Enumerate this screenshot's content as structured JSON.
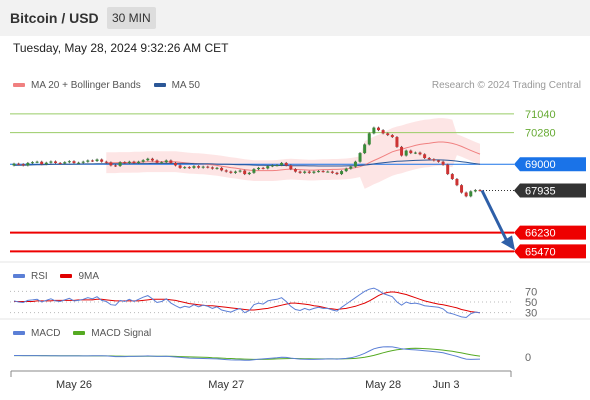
{
  "header": {
    "title": "Bitcoin / USD",
    "interval": "30 MIN",
    "timestamp": "Tuesday, May 28, 2024 9:32:26 AM CET",
    "source": "Research © 2024 Trading Central"
  },
  "colors": {
    "ma20": "#f08080",
    "ma50": "#2b5797",
    "bollinger_fill": "#fde0e0",
    "resistance": "#99cc66",
    "support": "#ee0000",
    "pivot": "#1a73e8",
    "current": "#333333",
    "rsi": "#5b7fd6",
    "rsi_ma": "#e00000",
    "macd": "#5b7fd6",
    "macd_signal": "#55aa22",
    "arrow": "#2e5fa8"
  },
  "chart_data": [
    {
      "type": "candlestick",
      "legend": [
        {
          "label": "MA 20 + Bollinger Bands",
          "color": "#f08080"
        },
        {
          "label": "MA 50",
          "color": "#2b5797"
        }
      ],
      "ylim": [
        65200,
        71600
      ],
      "levels": [
        {
          "label": "71040",
          "value": 71040,
          "kind": "resistance"
        },
        {
          "label": "70280",
          "value": 70280,
          "kind": "resistance"
        },
        {
          "label": "69000",
          "value": 69000,
          "kind": "pivot"
        },
        {
          "label": "67935",
          "value": 67935,
          "kind": "current"
        },
        {
          "label": "66230",
          "value": 66230,
          "kind": "support"
        },
        {
          "label": "65470",
          "value": 65470,
          "kind": "support"
        }
      ],
      "close": [
        69020,
        69000,
        68950,
        69050,
        69080,
        69100,
        69000,
        69060,
        69110,
        69050,
        69030,
        69080,
        69120,
        69050,
        69060,
        69100,
        69150,
        69130,
        69190,
        69100,
        69070,
        68950,
        68930,
        69080,
        69050,
        69100,
        69050,
        69100,
        69160,
        69220,
        69150,
        69060,
        69080,
        69150,
        69050,
        68950,
        68850,
        68880,
        68850,
        68920,
        68860,
        68900,
        68870,
        68820,
        68850,
        68750,
        68700,
        68650,
        68700,
        68740,
        68600,
        68650,
        68800,
        68850,
        68830,
        68920,
        68950,
        68960,
        69050,
        68950,
        68800,
        68700,
        68650,
        68700,
        68650,
        68700,
        68720,
        68700,
        68700,
        68650,
        68600,
        68720,
        68820,
        68900,
        69100,
        69450,
        69800,
        70250,
        70480,
        70380,
        70250,
        70180,
        70100,
        69700,
        69350,
        69550,
        69450,
        69470,
        69400,
        69250,
        69200,
        69150,
        69100,
        68980,
        68600,
        68400,
        68150,
        67850,
        67700,
        67900,
        67950,
        67935
      ],
      "open": [
        68950,
        69020,
        69000,
        68950,
        69050,
        69080,
        69100,
        69000,
        69060,
        69110,
        69050,
        69030,
        69080,
        69120,
        69050,
        69060,
        69100,
        69150,
        69130,
        69190,
        69100,
        69070,
        68950,
        68930,
        69080,
        69050,
        69100,
        69050,
        69100,
        69160,
        69220,
        69150,
        69060,
        69080,
        69150,
        69050,
        68950,
        68850,
        68880,
        68850,
        68920,
        68860,
        68900,
        68870,
        68820,
        68850,
        68750,
        68700,
        68650,
        68700,
        68740,
        68600,
        68650,
        68800,
        68850,
        68830,
        68920,
        68950,
        68960,
        69050,
        68950,
        68800,
        68700,
        68650,
        68700,
        68650,
        68700,
        68720,
        68700,
        68700,
        68650,
        68600,
        68720,
        68820,
        68900,
        69100,
        69450,
        69800,
        70250,
        70480,
        70380,
        70250,
        70180,
        70100,
        69700,
        69350,
        69550,
        69450,
        69470,
        69400,
        69250,
        69200,
        69150,
        69100,
        68980,
        68600,
        68400,
        68150,
        67850,
        67700,
        67900,
        67950
      ],
      "ma20": [
        null,
        null,
        null,
        null,
        null,
        null,
        null,
        null,
        null,
        null,
        null,
        null,
        null,
        null,
        null,
        null,
        null,
        null,
        null,
        null,
        69060,
        69060,
        69060,
        69070,
        69070,
        69070,
        69080,
        69080,
        69090,
        69100,
        69100,
        69100,
        69100,
        69100,
        69100,
        69100,
        69080,
        69060,
        69040,
        69030,
        69020,
        69010,
        68990,
        68970,
        68950,
        68920,
        68890,
        68860,
        68840,
        68810,
        68780,
        68760,
        68740,
        68740,
        68740,
        68740,
        68740,
        68750,
        68770,
        68790,
        68800,
        68790,
        68780,
        68770,
        68760,
        68760,
        68770,
        68780,
        68780,
        68790,
        68790,
        68800,
        68810,
        68830,
        68860,
        68900,
        68970,
        69060,
        69150,
        69230,
        69320,
        69410,
        69500,
        69560,
        69600,
        69660,
        69710,
        69760,
        69800,
        69830,
        69850,
        69880,
        69900,
        69900,
        69880,
        69840,
        69790,
        69720,
        69640,
        69560,
        69480,
        69410
      ],
      "bb_width": 420,
      "ma50": [
        68950,
        68955,
        68960,
        68965,
        68970,
        68975,
        68980,
        68985,
        68990,
        68995,
        69000,
        69000,
        69000,
        69005,
        69005,
        69010,
        69010,
        69010,
        69015,
        69015,
        69015,
        69020,
        69020,
        69020,
        69020,
        69020,
        69025,
        69025,
        69025,
        69025,
        69030,
        69030,
        69030,
        69030,
        69030,
        69030,
        69030,
        69030,
        69030,
        69025,
        69020,
        69020,
        69015,
        69010,
        69005,
        69000,
        68995,
        68990,
        68985,
        68980,
        68975,
        68970,
        68965,
        68960,
        68955,
        68950,
        68950,
        68945,
        68945,
        68945,
        68940,
        68940,
        68935,
        68935,
        68930,
        68930,
        68925,
        68925,
        68925,
        68925,
        68925,
        68925,
        68930,
        68935,
        68940,
        68950,
        68965,
        68985,
        69010,
        69035,
        69060,
        69080,
        69100,
        69115,
        69125,
        69135,
        69145,
        69155,
        69160,
        69165,
        69170,
        69175,
        69175,
        69170,
        69160,
        69145,
        69125,
        69100,
        69075,
        69050,
        69025,
        69000
      ],
      "forecast": {
        "from": 67935,
        "to": 65470
      }
    },
    {
      "type": "line",
      "legend": [
        {
          "label": "RSI",
          "color": "#5b7fd6"
        },
        {
          "label": "9MA",
          "color": "#e00000"
        }
      ],
      "ylim": [
        20,
        80
      ],
      "ticks": [
        "70",
        "50",
        "30"
      ],
      "tick_values": [
        70,
        50,
        30
      ],
      "rsi": [
        52,
        50,
        49,
        53,
        54,
        55,
        50,
        53,
        56,
        52,
        51,
        54,
        57,
        52,
        53,
        55,
        58,
        56,
        60,
        53,
        51,
        45,
        44,
        53,
        51,
        55,
        51,
        55,
        59,
        62,
        56,
        49,
        51,
        56,
        48,
        43,
        39,
        42,
        40,
        45,
        41,
        44,
        42,
        38,
        41,
        35,
        33,
        31,
        35,
        38,
        30,
        34,
        45,
        48,
        46,
        52,
        54,
        55,
        58,
        51,
        42,
        36,
        34,
        38,
        35,
        38,
        40,
        38,
        38,
        35,
        33,
        40,
        46,
        52,
        58,
        64,
        70,
        74,
        76,
        72,
        66,
        63,
        60,
        50,
        44,
        50,
        47,
        48,
        46,
        43,
        42,
        41,
        40,
        37,
        30,
        28,
        25,
        22,
        21,
        28,
        31,
        30
      ],
      "ma9": [
        51,
        51,
        51,
        51,
        51,
        52,
        52,
        52,
        52,
        53,
        53,
        53,
        53,
        53,
        54,
        54,
        54,
        54,
        55,
        55,
        54,
        53,
        52,
        52,
        52,
        52,
        52,
        52,
        53,
        54,
        55,
        55,
        55,
        55,
        54,
        53,
        51,
        49,
        47,
        46,
        45,
        44,
        43,
        43,
        42,
        41,
        40,
        39,
        38,
        37,
        36,
        35,
        35,
        36,
        37,
        38,
        40,
        42,
        44,
        46,
        48,
        48,
        47,
        46,
        45,
        43,
        42,
        40,
        38,
        37,
        36,
        37,
        38,
        40,
        42,
        45,
        48,
        52,
        57,
        62,
        66,
        68,
        69,
        68,
        66,
        64,
        61,
        58,
        55,
        52,
        50,
        48,
        46,
        45,
        43,
        41,
        39,
        36,
        34,
        32,
        31,
        30
      ]
    },
    {
      "type": "line",
      "legend": [
        {
          "label": "MACD",
          "color": "#5b7fd6"
        },
        {
          "label": "MACD Signal",
          "color": "#55aa22"
        }
      ],
      "ylim": [
        -100,
        100
      ],
      "ticks": [
        "0"
      ],
      "tick_values": [
        0
      ],
      "macd": [
        10,
        10,
        9,
        9,
        9,
        9,
        8,
        8,
        8,
        8,
        7,
        7,
        7,
        7,
        7,
        7,
        7,
        8,
        8,
        8,
        7,
        5,
        3,
        3,
        3,
        4,
        4,
        5,
        6,
        7,
        6,
        4,
        4,
        5,
        3,
        0,
        -3,
        -5,
        -7,
        -8,
        -9,
        -10,
        -11,
        -12,
        -13,
        -15,
        -17,
        -19,
        -20,
        -20,
        -22,
        -22,
        -18,
        -15,
        -13,
        -10,
        -7,
        -5,
        -2,
        -3,
        -7,
        -11,
        -14,
        -15,
        -16,
        -16,
        -15,
        -14,
        -13,
        -13,
        -14,
        -12,
        -9,
        -5,
        2,
        12,
        25,
        40,
        55,
        63,
        67,
        68,
        67,
        62,
        55,
        52,
        49,
        47,
        45,
        42,
        39,
        36,
        33,
        28,
        20,
        12,
        4,
        -6,
        -14,
        -16,
        -15,
        -14
      ],
      "signal": [
        9,
        9,
        9,
        9,
        9,
        9,
        9,
        9,
        8,
        8,
        8,
        8,
        8,
        8,
        8,
        7,
        7,
        7,
        7,
        7,
        7,
        7,
        6,
        6,
        5,
        5,
        5,
        5,
        5,
        5,
        5,
        5,
        5,
        5,
        5,
        4,
        3,
        2,
        1,
        0,
        -1,
        -2,
        -3,
        -5,
        -6,
        -7,
        -9,
        -10,
        -12,
        -13,
        -14,
        -15,
        -16,
        -16,
        -16,
        -15,
        -14,
        -13,
        -12,
        -11,
        -10,
        -10,
        -11,
        -12,
        -12,
        -13,
        -13,
        -13,
        -13,
        -13,
        -13,
        -13,
        -12,
        -11,
        -9,
        -6,
        -2,
        4,
        11,
        19,
        28,
        36,
        43,
        48,
        52,
        55,
        57,
        58,
        57,
        56,
        54,
        52,
        49,
        46,
        42,
        38,
        33,
        27,
        21,
        15,
        10,
        6
      ]
    }
  ],
  "xaxis": {
    "labels": [
      {
        "label": "May 26",
        "index": 13
      },
      {
        "label": "May 27",
        "index": 46
      },
      {
        "label": "May 28",
        "index": 80
      },
      {
        "label": "Jun 3",
        "index": 93
      }
    ]
  }
}
